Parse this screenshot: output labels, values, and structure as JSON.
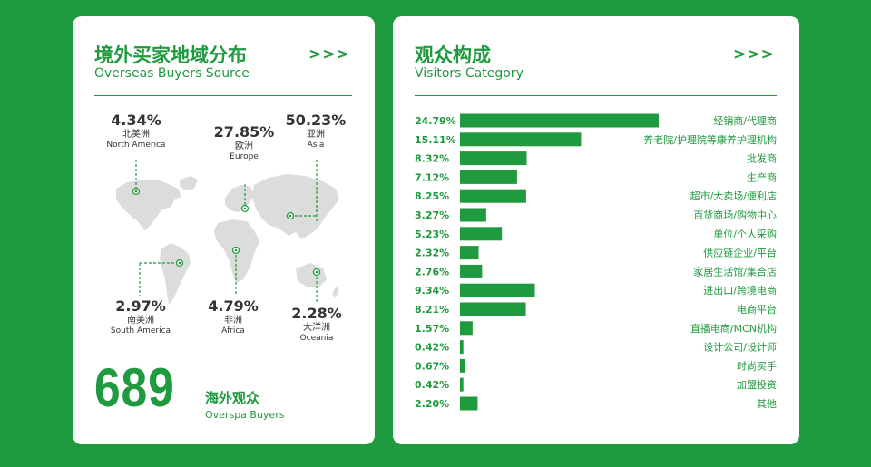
{
  "left_panel": {
    "title_zh": "境外买家地域分布",
    "title_en": "Overseas Buyers Source",
    "chevrons": ">>>",
    "regions": [
      {
        "pct": "4.34%",
        "zh": "北美洲",
        "en": "North America"
      },
      {
        "pct": "27.85%",
        "zh": "欧洲",
        "en": "Europe"
      },
      {
        "pct": "50.23%",
        "zh": "亚洲",
        "en": "Asia"
      },
      {
        "pct": "2.97%",
        "zh": "南美洲",
        "en": "South America"
      },
      {
        "pct": "4.79%",
        "zh": "非洲",
        "en": "Africa"
      },
      {
        "pct": "2.28%",
        "zh": "大洋洲",
        "en": "Oceania"
      }
    ],
    "total_number": "689",
    "total_label_zh": "海外观众",
    "total_label_en": "Overspa Buyers"
  },
  "right_panel": {
    "title_zh": "观众构成",
    "title_en": "Visitors Category",
    "chevrons": ">>>"
  },
  "colors": {
    "accent": "#1f9a3e",
    "bar": "#1f9a3e"
  },
  "chart_data": {
    "type": "bar",
    "orientation": "horizontal",
    "title": "观众构成",
    "subtitle": "Visitors Category",
    "categories": [
      "经销商/代理商",
      "养老院/护理院等康养护理机构",
      "批发商",
      "生产商",
      "超市/大卖场/便利店",
      "百货商场/购物中心",
      "单位/个人采购",
      "供应链企业/平台",
      "家居生活馆/集合店",
      "进出口/跨境电商",
      "电商平台",
      "直播电商/MCN机构",
      "设计公司/设计师",
      "时尚买手",
      "加盟投资",
      "其他"
    ],
    "values": [
      24.79,
      15.11,
      8.32,
      7.12,
      8.25,
      3.27,
      5.23,
      2.32,
      2.76,
      9.34,
      8.21,
      1.57,
      0.42,
      0.67,
      0.42,
      2.2
    ],
    "value_labels": [
      "24.79%",
      "15.11%",
      "8.32%",
      "7.12%",
      "8.25%",
      "3.27%",
      "5.23%",
      "2.32%",
      "2.76%",
      "9.34%",
      "8.21%",
      "1.57%",
      "0.42%",
      "0.67%",
      "0.42%",
      "2.20%"
    ],
    "xlim": [
      0,
      24.79
    ]
  }
}
